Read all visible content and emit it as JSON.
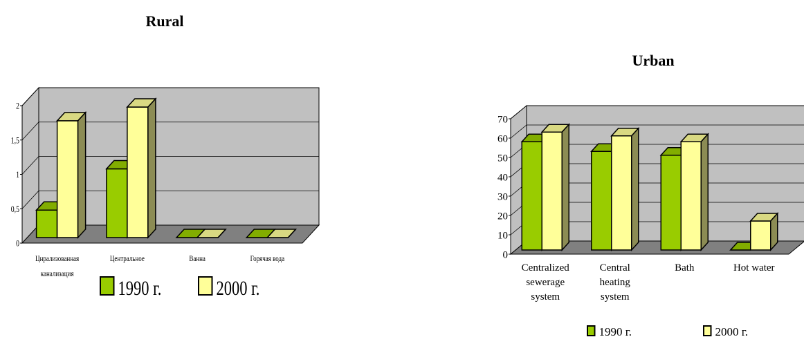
{
  "chart_data": [
    {
      "type": "bar",
      "title": "Rural",
      "categories": [
        "Цнрализованная канализация",
        "Центральное",
        "Ванна",
        "Горячая вода"
      ],
      "category_lines": [
        [
          "Цнрализованная",
          "канализация"
        ],
        [
          "Центральное"
        ],
        [
          "Ванна"
        ],
        [
          "Горячая вода"
        ]
      ],
      "series": [
        {
          "name": "1990 г.",
          "values": [
            0.4,
            1.0,
            0,
            0
          ],
          "color": "#99cc00"
        },
        {
          "name": "2000 г.",
          "values": [
            1.7,
            1.9,
            0,
            0
          ],
          "color": "#ffff99"
        }
      ],
      "y_ticks": [
        "0",
        "0,5",
        "1",
        "1,5",
        "2"
      ],
      "ylim": [
        0,
        2
      ],
      "grid": true,
      "legend": "bottom",
      "three_d": true
    },
    {
      "type": "bar",
      "title": "Urban",
      "categories": [
        "Centralized sewerage system",
        "Central heating system",
        "Bath",
        "Hot water"
      ],
      "category_lines": [
        [
          "Centralized",
          "sewerage",
          "system"
        ],
        [
          "Central",
          "heating",
          "system"
        ],
        [
          "Bath"
        ],
        [
          "Hot water"
        ]
      ],
      "series": [
        {
          "name": "1990 г.",
          "values": [
            56,
            51,
            49,
            0
          ],
          "color": "#99cc00"
        },
        {
          "name": "2000 г.",
          "values": [
            61,
            59,
            56,
            15
          ],
          "color": "#ffff99"
        }
      ],
      "y_ticks": [
        "0",
        "10",
        "20",
        "30",
        "40",
        "50",
        "60",
        "70"
      ],
      "ylim": [
        0,
        70
      ],
      "grid": true,
      "legend": "bottom",
      "three_d": true
    }
  ],
  "colors": {
    "wall": "#c0c0c0",
    "floor": "#808080",
    "outline": "#000000"
  }
}
